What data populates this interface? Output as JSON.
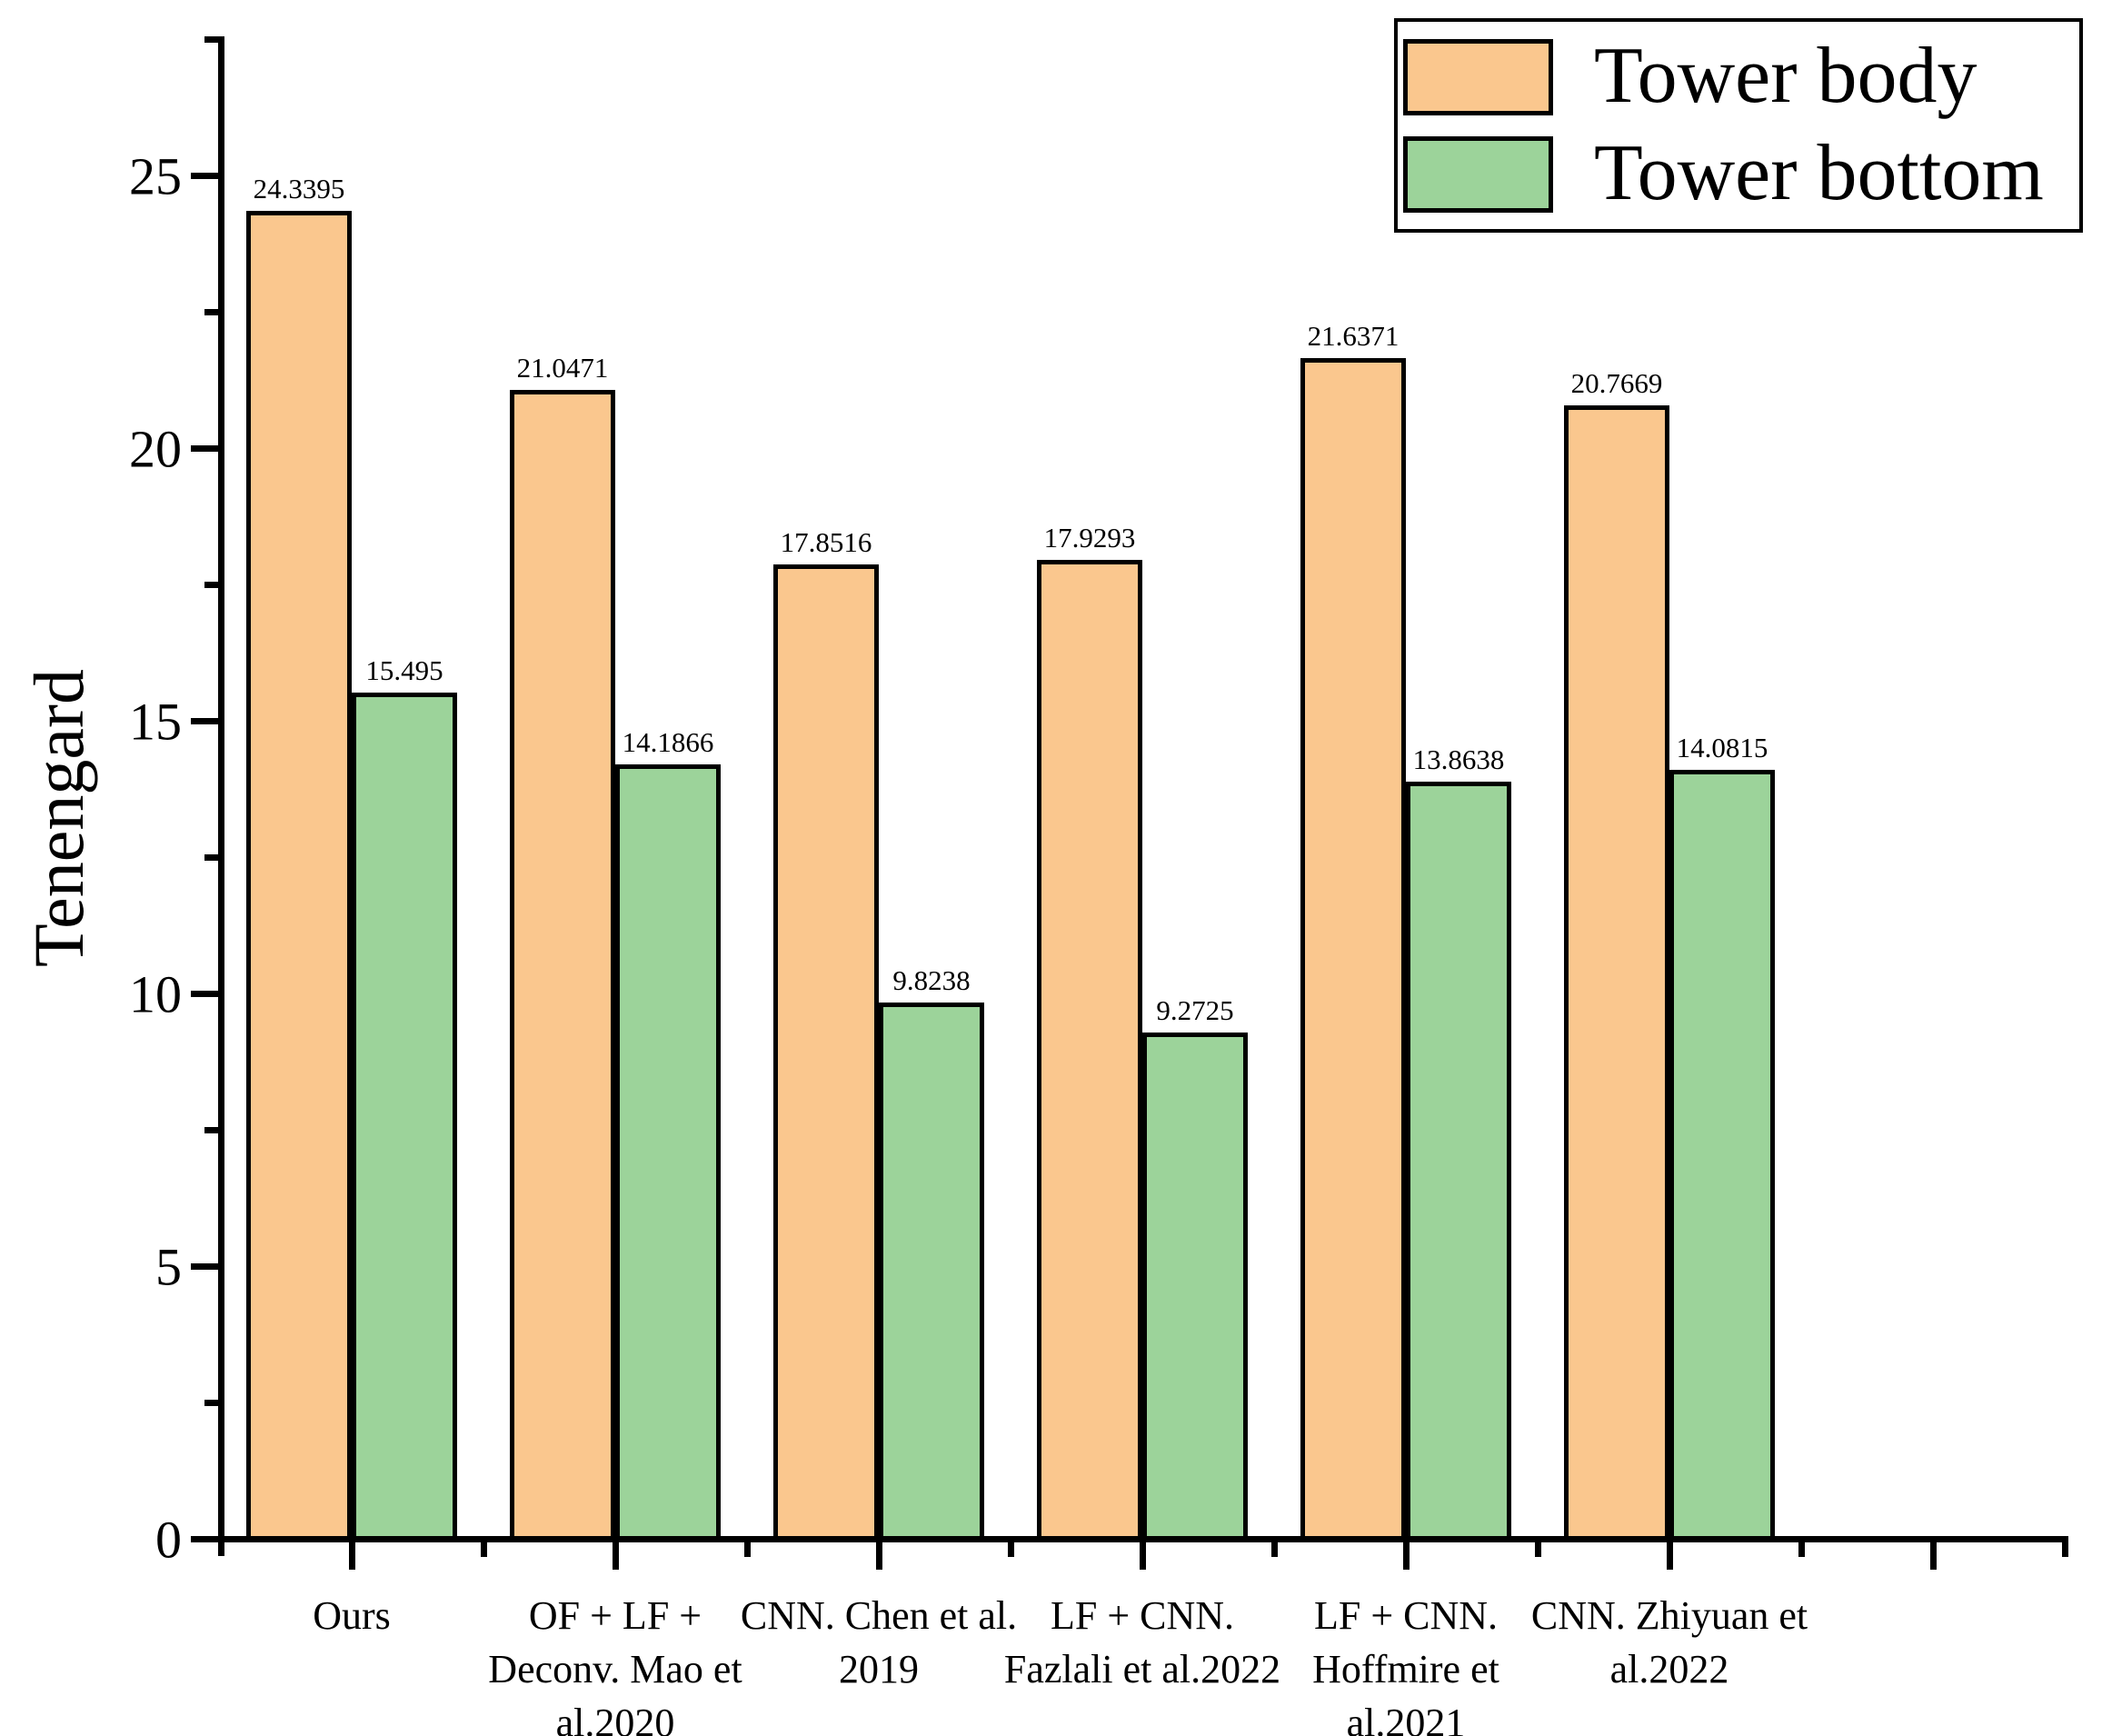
{
  "chart_data": {
    "type": "bar",
    "title": "",
    "xlabel": "",
    "ylabel": "Tenengard",
    "ylim": [
      0,
      27.5
    ],
    "y_major_ticks": [
      0,
      5,
      10,
      15,
      20,
      25
    ],
    "y_major_tick_labels": [
      "0",
      "5",
      "10",
      "15",
      "20",
      "25"
    ],
    "y_minor_ticks": [
      2.5,
      7.5,
      12.5,
      17.5,
      22.5,
      27.5
    ],
    "grid": "off",
    "legend_position": "top-right",
    "n_category_slots": 7,
    "categories": [
      {
        "label": "Ours",
        "lines": [
          "Ours"
        ]
      },
      {
        "label": "OF + LF + Deconv. Mao et al.2020",
        "lines": [
          "OF + LF +",
          "Deconv. Mao et",
          "al.2020"
        ]
      },
      {
        "label": "CNN. Chen et al. 2019",
        "lines": [
          "CNN. Chen et al.",
          "2019"
        ]
      },
      {
        "label": "LF + CNN. Fazlali et al.2022",
        "lines": [
          "LF + CNN.",
          "Fazlali et al.2022"
        ]
      },
      {
        "label": "LF + CNN. Hoffmire et al.2021",
        "lines": [
          "LF + CNN.",
          "Hoffmire et",
          "al.2021"
        ]
      },
      {
        "label": "CNN. Zhiyuan et al.2022",
        "lines": [
          "CNN. Zhiyuan et",
          "al.2022"
        ]
      }
    ],
    "series": [
      {
        "name": "Tower body",
        "color": "#FAC78E",
        "values": [
          24.3395,
          21.0471,
          17.8516,
          17.9293,
          21.6371,
          20.7669
        ],
        "value_labels": [
          "24.3395",
          "21.0471",
          "17.8516",
          "17.9293",
          "21.6371",
          "20.7669"
        ]
      },
      {
        "name": "Tower bottom",
        "color": "#9CD39A",
        "values": [
          15.495,
          14.1866,
          9.8238,
          9.2725,
          13.8638,
          14.0815
        ],
        "value_labels": [
          "15.495",
          "14.1866",
          "9.8238",
          "9.2725",
          "13.8638",
          "14.0815"
        ]
      }
    ],
    "bar_edge_color": "#000000",
    "axis_color": "#000000",
    "background_color": "#FFFFFF"
  }
}
